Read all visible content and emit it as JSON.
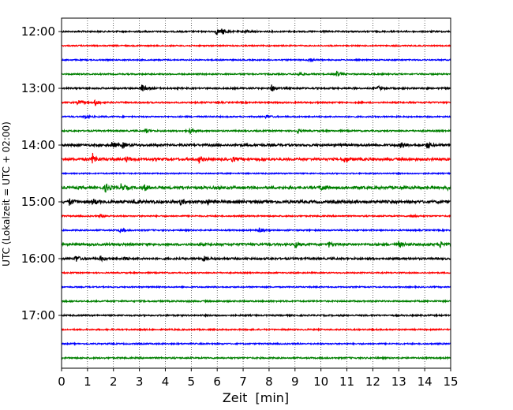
{
  "chart_data": {
    "type": "line",
    "title": "",
    "xlabel": "Zeit  [min]",
    "ylabel": "UTC (Lokalzeit = UTC + 02:00)",
    "xlim": [
      0,
      15
    ],
    "x_ticks": [
      "0",
      "1",
      "2",
      "3",
      "4",
      "5",
      "6",
      "7",
      "8",
      "9",
      "10",
      "11",
      "12",
      "13",
      "14",
      "15"
    ],
    "y_tick_labels": [
      "12:00",
      "13:00",
      "14:00",
      "15:00",
      "16:00",
      "17:00"
    ],
    "row_interval_min": 15,
    "grid": "vertical dotted at each minute",
    "legend": "none",
    "color_cycle": [
      "#000000",
      "#ff0000",
      "#0000ff",
      "#008000"
    ],
    "traces": [
      {
        "start": "12:00",
        "color": "#000000",
        "amplitude": 0.55,
        "events": [
          {
            "t": 5.95,
            "a": 2.6
          },
          {
            "t": 6.2,
            "a": 2.2
          },
          {
            "t": 7.1,
            "a": 1.6
          }
        ]
      },
      {
        "start": "12:15",
        "color": "#ff0000",
        "amplitude": 0.45,
        "events": []
      },
      {
        "start": "12:30",
        "color": "#0000ff",
        "amplitude": 0.45,
        "events": [
          {
            "t": 9.55,
            "a": 2.4
          }
        ]
      },
      {
        "start": "12:45",
        "color": "#008000",
        "amplitude": 0.5,
        "events": [
          {
            "t": 9.15,
            "a": 1.8
          },
          {
            "t": 10.6,
            "a": 2.4
          }
        ]
      },
      {
        "start": "13:00",
        "color": "#000000",
        "amplitude": 0.6,
        "events": [
          {
            "t": 3.1,
            "a": 3.0
          },
          {
            "t": 8.1,
            "a": 2.6
          },
          {
            "t": 12.2,
            "a": 1.6
          }
        ]
      },
      {
        "start": "13:15",
        "color": "#ff0000",
        "amplitude": 0.55,
        "events": [
          {
            "t": 0.65,
            "a": 2.0
          },
          {
            "t": 1.3,
            "a": 2.4
          }
        ]
      },
      {
        "start": "13:30",
        "color": "#0000ff",
        "amplitude": 0.5,
        "events": [
          {
            "t": 0.9,
            "a": 1.5
          },
          {
            "t": 7.9,
            "a": 1.4
          }
        ]
      },
      {
        "start": "13:45",
        "color": "#008000",
        "amplitude": 0.55,
        "events": [
          {
            "t": 3.25,
            "a": 1.6
          },
          {
            "t": 4.95,
            "a": 2.0
          },
          {
            "t": 9.1,
            "a": 1.4
          }
        ]
      },
      {
        "start": "14:00",
        "color": "#000000",
        "amplitude": 0.85,
        "events": [
          {
            "t": 1.95,
            "a": 2.4
          },
          {
            "t": 2.35,
            "a": 2.0
          },
          {
            "t": 13.1,
            "a": 2.6
          },
          {
            "t": 14.1,
            "a": 2.6
          }
        ]
      },
      {
        "start": "14:15",
        "color": "#ff0000",
        "amplitude": 0.9,
        "events": [
          {
            "t": 1.2,
            "a": 4.2
          },
          {
            "t": 2.5,
            "a": 1.8
          },
          {
            "t": 5.3,
            "a": 2.2
          },
          {
            "t": 6.6,
            "a": 1.8
          },
          {
            "t": 10.9,
            "a": 2.4
          }
        ]
      },
      {
        "start": "14:30",
        "color": "#0000ff",
        "amplitude": 0.45,
        "events": []
      },
      {
        "start": "14:45",
        "color": "#008000",
        "amplitude": 1.0,
        "events": [
          {
            "t": 1.7,
            "a": 3.2
          },
          {
            "t": 2.3,
            "a": 2.8
          },
          {
            "t": 3.2,
            "a": 2.2
          },
          {
            "t": 10.0,
            "a": 2.4
          },
          {
            "t": 14.9,
            "a": 2.0
          }
        ]
      },
      {
        "start": "15:00",
        "color": "#000000",
        "amplitude": 1.05,
        "events": [
          {
            "t": 0.3,
            "a": 2.4
          },
          {
            "t": 1.2,
            "a": 2.4
          },
          {
            "t": 2.8,
            "a": 1.8
          },
          {
            "t": 4.6,
            "a": 2.0
          },
          {
            "t": 5.6,
            "a": 1.8
          }
        ]
      },
      {
        "start": "15:15",
        "color": "#ff0000",
        "amplitude": 0.5,
        "events": [
          {
            "t": 1.5,
            "a": 1.4
          },
          {
            "t": 13.5,
            "a": 1.2
          }
        ]
      },
      {
        "start": "15:30",
        "color": "#0000ff",
        "amplitude": 0.5,
        "events": [
          {
            "t": 2.25,
            "a": 1.8
          },
          {
            "t": 7.6,
            "a": 2.2
          }
        ]
      },
      {
        "start": "15:45",
        "color": "#008000",
        "amplitude": 0.85,
        "events": [
          {
            "t": 9.0,
            "a": 2.2
          },
          {
            "t": 10.3,
            "a": 1.8
          },
          {
            "t": 13.0,
            "a": 2.2
          },
          {
            "t": 14.6,
            "a": 2.4
          }
        ]
      },
      {
        "start": "16:00",
        "color": "#000000",
        "amplitude": 0.75,
        "events": [
          {
            "t": 0.55,
            "a": 2.6
          },
          {
            "t": 1.5,
            "a": 1.8
          },
          {
            "t": 2.4,
            "a": 1.6
          },
          {
            "t": 5.45,
            "a": 2.2
          }
        ]
      },
      {
        "start": "16:15",
        "color": "#ff0000",
        "amplitude": 0.45,
        "events": []
      },
      {
        "start": "16:30",
        "color": "#0000ff",
        "amplitude": 0.45,
        "events": []
      },
      {
        "start": "16:45",
        "color": "#008000",
        "amplitude": 0.55,
        "events": []
      },
      {
        "start": "17:00",
        "color": "#000000",
        "amplitude": 0.55,
        "events": []
      },
      {
        "start": "17:15",
        "color": "#ff0000",
        "amplitude": 0.5,
        "events": []
      },
      {
        "start": "17:30",
        "color": "#0000ff",
        "amplitude": 0.5,
        "events": []
      },
      {
        "start": "17:45",
        "color": "#008000",
        "amplitude": 0.55,
        "events": []
      }
    ]
  }
}
